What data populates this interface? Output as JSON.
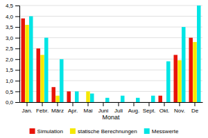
{
  "chart_data": {
    "type": "bar",
    "x_label": "Monat",
    "categories": [
      "Jan.",
      "Febr.",
      "März",
      "Apr.",
      "Mai",
      "Juni",
      "Juli",
      "Aug.",
      "Sept.",
      "Okt.",
      "Nov.",
      "De"
    ],
    "series": [
      {
        "name": "Simulation",
        "color": "#e8140a",
        "values": [
          3.9,
          2.5,
          0.7,
          0.5,
          0.0,
          0.0,
          0.0,
          0.0,
          0.0,
          0.3,
          2.2,
          3.0
        ]
      },
      {
        "name": "statische Berechnungen",
        "color": "#f5e800",
        "values": [
          3.6,
          2.2,
          0.3,
          0.0,
          0.5,
          0.0,
          0.0,
          0.0,
          0.0,
          0.0,
          1.95,
          2.8
        ]
      },
      {
        "name": "Messwerte",
        "color": "#00e5e5",
        "values": [
          4.0,
          3.0,
          2.0,
          0.5,
          0.4,
          0.2,
          0.3,
          0.2,
          0.3,
          1.9,
          3.5,
          4.5
        ]
      }
    ],
    "ylim": [
      0,
      4.5
    ],
    "yticks": [
      {
        "value": 0.0,
        "label": "0,0"
      },
      {
        "value": 0.5,
        "label": "0,5"
      },
      {
        "value": 1.0,
        "label": "1,0"
      },
      {
        "value": 1.5,
        "label": "1,5"
      },
      {
        "value": 2.0,
        "label": "2,0"
      },
      {
        "value": 2.5,
        "label": "2,5"
      },
      {
        "value": 3.0,
        "label": "3,0"
      },
      {
        "value": 3.5,
        "label": "3,5"
      },
      {
        "value": 4.0,
        "label": "4,0"
      },
      {
        "value": 4.5,
        "label": "4,5"
      }
    ],
    "grid": true,
    "legend": "bottom"
  }
}
